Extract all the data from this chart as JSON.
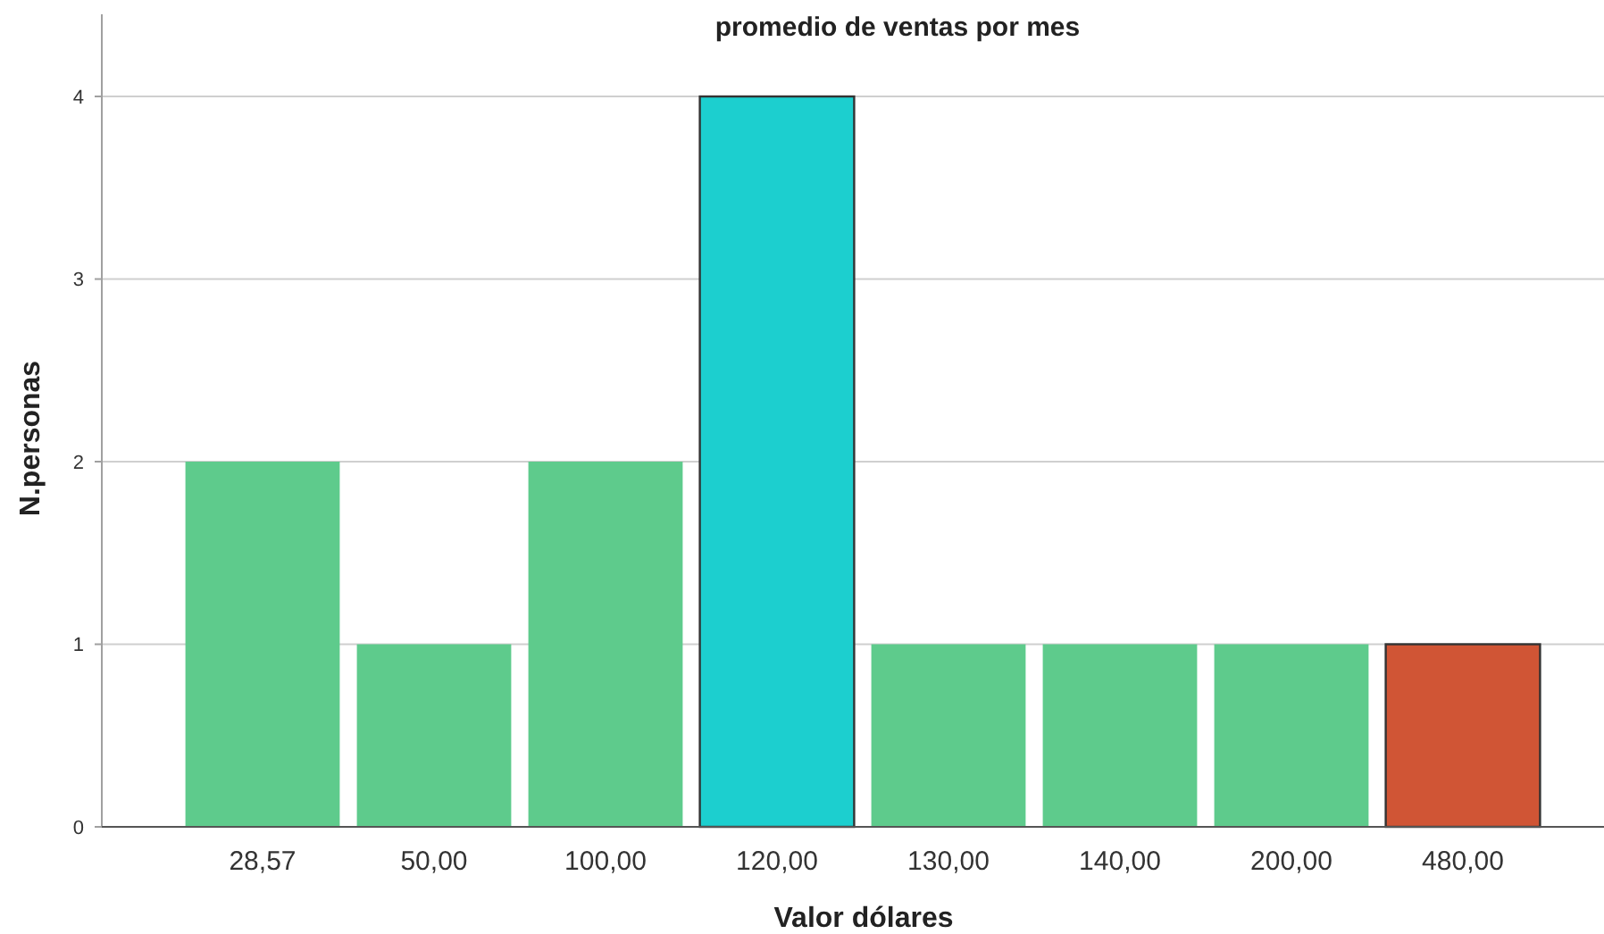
{
  "chart_data": {
    "type": "bar",
    "title": "promedio de ventas por mes",
    "xlabel": "Valor dólares",
    "ylabel": "N.personas",
    "categories": [
      "28,57",
      "50,00",
      "100,00",
      "120,00",
      "130,00",
      "140,00",
      "200,00",
      "480,00"
    ],
    "values": [
      2,
      1,
      2,
      4,
      1,
      1,
      1,
      1
    ],
    "colors": [
      "#5ecb8c",
      "#5ecb8c",
      "#5ecb8c",
      "#1ccfcf",
      "#5ecb8c",
      "#5ecb8c",
      "#5ecb8c",
      "#d05535"
    ],
    "ylim": [
      0,
      4.45
    ],
    "yticks": [
      0,
      1,
      2,
      3,
      4
    ],
    "grid": "y"
  }
}
